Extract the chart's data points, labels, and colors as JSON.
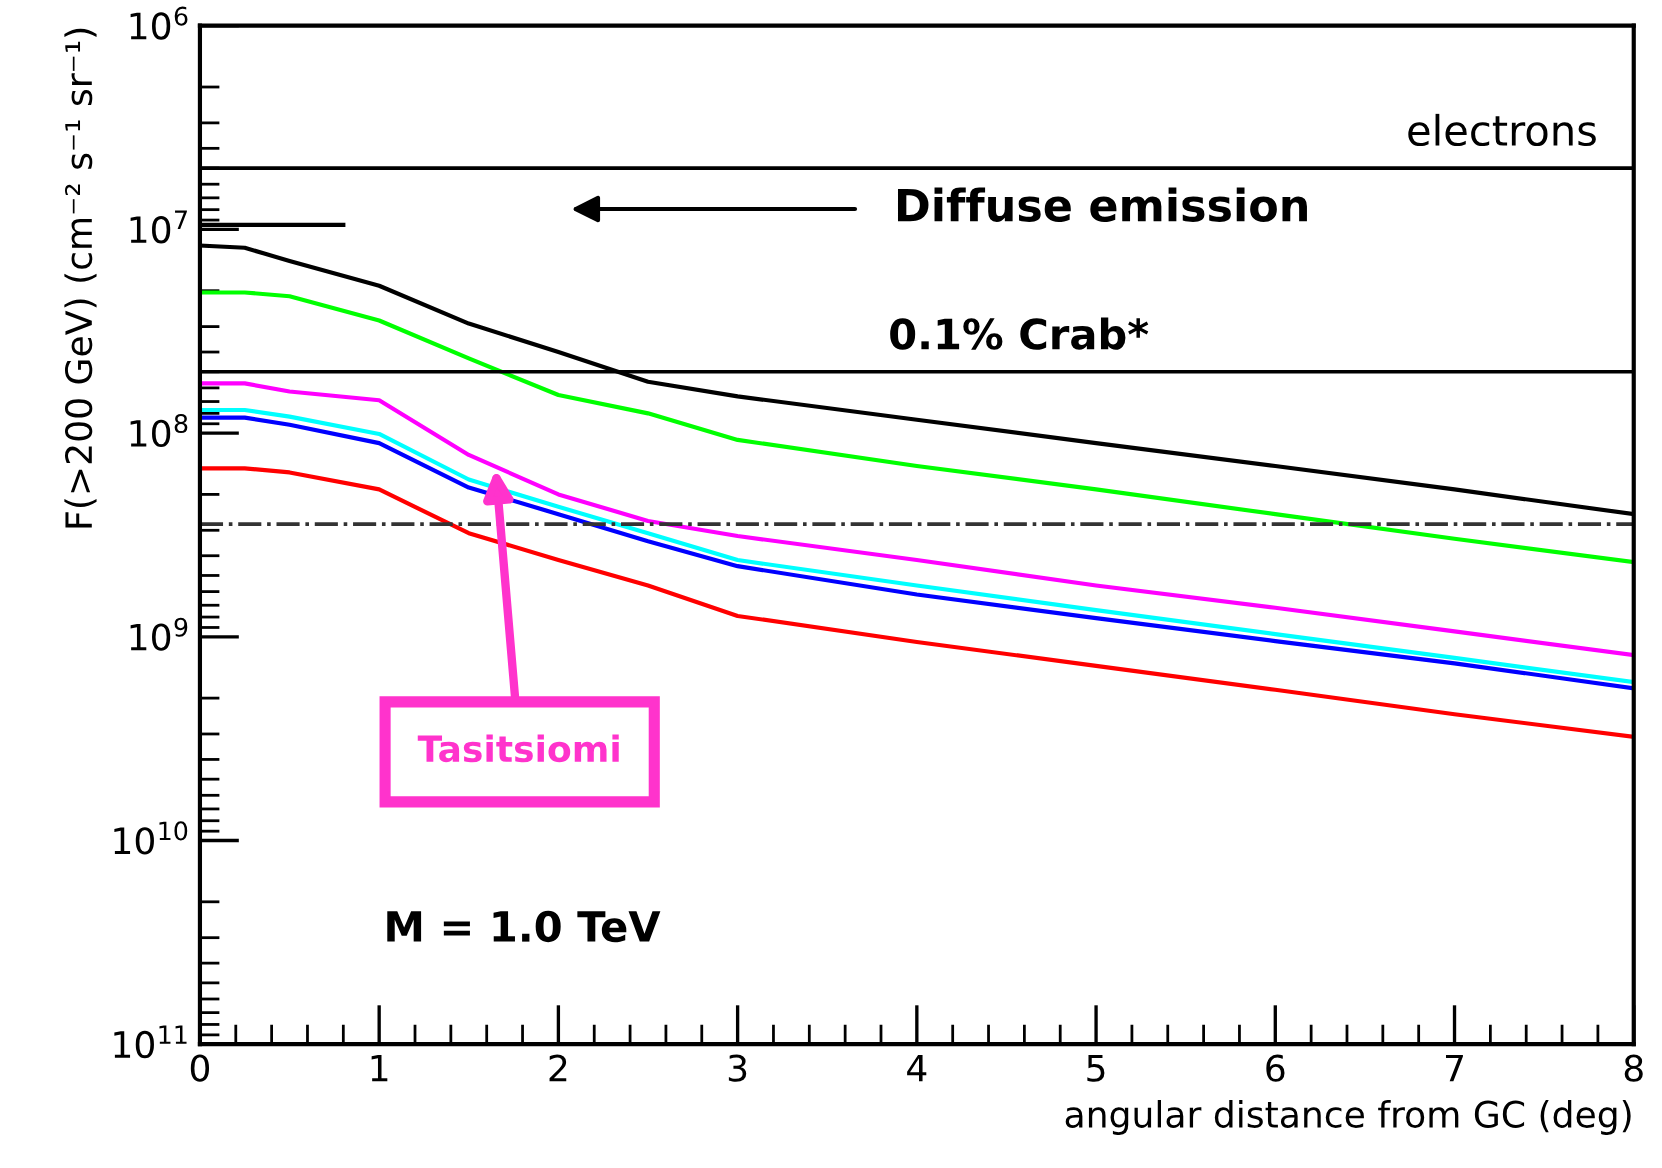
{
  "chart_data": {
    "type": "line",
    "xlabel": "angular distance from GC (deg)",
    "ylabel": "F(>200 GeV) (cm⁻² s⁻¹ sr⁻¹)",
    "x": [
      0,
      0.25,
      0.5,
      1,
      1.5,
      2,
      2.5,
      3,
      4,
      5,
      6,
      7,
      8
    ],
    "series": [
      {
        "color": "#000000",
        "values": [
          12000000.0,
          12300000.0,
          14300000.0,
          18900000.0,
          29000000.0,
          40000000.0,
          56000000.0,
          66000000.0,
          86000000.0,
          112000000.0,
          145000000.0,
          189000000.0,
          250000000.0
        ]
      },
      {
        "color": "#00ff00",
        "values": [
          20400000.0,
          20400000.0,
          21300000.0,
          28000000.0,
          43000000.0,
          65000000.0,
          80000000.0,
          108000000.0,
          145000000.0,
          189000000.0,
          250000000.0,
          330000000.0,
          430000000.0
        ]
      },
      {
        "color": "#ff00ff",
        "values": [
          57000000.0,
          57000000.0,
          62500000.0,
          69000000.0,
          128000000.0,
          200000000.0,
          270000000.0,
          320000000.0,
          420000000.0,
          560000000.0,
          720000000.0,
          940000000.0,
          1230000000.0
        ]
      },
      {
        "color": "#00ffff",
        "values": [
          77000000.0,
          77000000.0,
          83000000.0,
          101000000.0,
          169000000.0,
          230000000.0,
          310000000.0,
          420000000.0,
          560000000.0,
          740000000.0,
          970000000.0,
          1270000000.0,
          1670000000.0
        ]
      },
      {
        "color": "#0000ff",
        "values": [
          84000000.0,
          84000000.0,
          91000000.0,
          112000000.0,
          185000000.0,
          250000000.0,
          340000000.0,
          450000000.0,
          620000000.0,
          810000000.0,
          1050000000.0,
          1350000000.0,
          1790000000.0
        ]
      },
      {
        "color": "#ff0000",
        "values": [
          149000000.0,
          149000000.0,
          156000000.0,
          189000000.0,
          310000000.0,
          420000000.0,
          560000000.0,
          790000000.0,
          1060000000.0,
          1390000000.0,
          1820000000.0,
          2400000000.0,
          3100000000.0
        ]
      },
      {
        "color": "#000000",
        "x": [
          0,
          0.8
        ],
        "values": [
          9500000.0,
          9500000.0
        ]
      }
    ],
    "ref_lines": [
      {
        "axis": "y",
        "value": 5000000.0,
        "label": "electrons",
        "color": "#000000",
        "line_style": "solid"
      },
      {
        "axis": "y",
        "value": 50000000.0,
        "label": "0.1% Crab*",
        "color": "#000000",
        "line_style": "solid"
      },
      {
        "axis": "y",
        "value": 280000000.0,
        "color": "#333333",
        "line_style": "dashdot"
      }
    ],
    "annotations": [
      "Diffuse emission",
      {
        "text": "Tasitsiomi",
        "x": 1.65,
        "y": 150000000.0
      },
      "M = 1.0 TeV"
    ],
    "log": "y",
    "xlim": [
      0,
      8
    ],
    "xticks": [
      0,
      1,
      2,
      3,
      4,
      5,
      6,
      7,
      8
    ],
    "ylim": [
      100000000000.0,
      1000000.0
    ],
    "yticks": [
      {
        "value": 100000000000.0,
        "label": "10$^{11}$"
      },
      {
        "value": 10000000000.0,
        "label": "10$^{10}$"
      },
      {
        "value": 1000000000.0,
        "label": "10$^{9}$"
      },
      {
        "value": 100000000.0,
        "label": "10$^{8}$"
      },
      {
        "value": 10000000.0,
        "label": "10$^{7}$"
      },
      {
        "value": 1000000.0,
        "label": "10$^{6}$"
      }
    ],
    "grid": false,
    "marker": "none",
    "line_style": "solid"
  }
}
